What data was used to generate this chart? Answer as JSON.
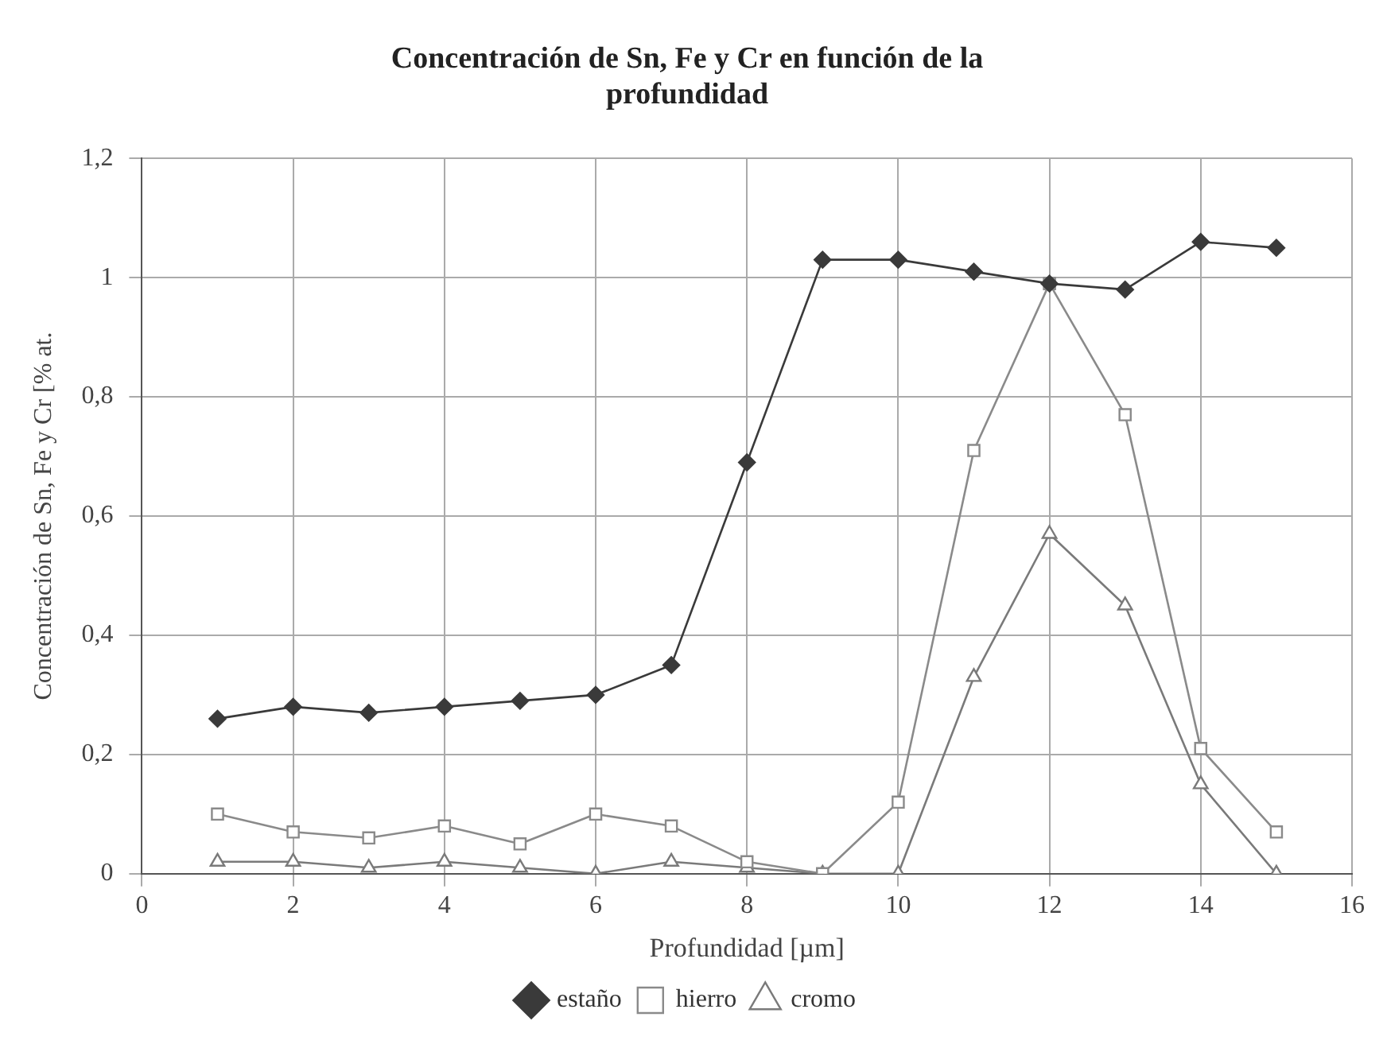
{
  "chart_data": {
    "type": "line",
    "title": "Concentración de Sn, Fe y Cr en función de la profundidad",
    "xlabel": "Profundidad [µm]",
    "ylabel": "Concentración de Sn, Fe y Cr [% at.",
    "x": [
      1,
      2,
      3,
      4,
      5,
      6,
      7,
      8,
      9,
      10,
      11,
      12,
      13,
      14,
      15
    ],
    "series": [
      {
        "name": "estaño",
        "color": "#3a3a3a",
        "marker": "diamond",
        "values": [
          0.26,
          0.28,
          0.27,
          0.28,
          0.29,
          0.3,
          0.35,
          0.69,
          1.03,
          1.03,
          1.01,
          0.99,
          0.98,
          1.06,
          1.05
        ]
      },
      {
        "name": "hierro",
        "color": "#8a8a8a",
        "marker": "square",
        "values": [
          0.1,
          0.07,
          0.06,
          0.08,
          0.05,
          0.1,
          0.08,
          0.02,
          0,
          0.12,
          0.71,
          0.99,
          0.77,
          0.21,
          0.07
        ]
      },
      {
        "name": "cromo",
        "color": "#7a7a7a",
        "marker": "triangle",
        "values": [
          0.02,
          0.02,
          0.01,
          0.02,
          0.01,
          0,
          0.02,
          0.01,
          0,
          0,
          0.33,
          0.57,
          0.45,
          0.15,
          0
        ]
      }
    ],
    "xlim": [
      0,
      16
    ],
    "xticks": [
      0,
      2,
      4,
      6,
      8,
      10,
      12,
      14,
      16
    ],
    "ylim": [
      0,
      1.2
    ],
    "yticks": [
      0,
      {
        "value": 0.2,
        "label": "0,2"
      },
      {
        "value": 0.4,
        "label": "0,4"
      },
      {
        "value": 0.6,
        "label": "0,6"
      },
      {
        "value": 0.8,
        "label": "0,8"
      },
      1,
      {
        "value": 1.2,
        "label": "1,2"
      }
    ],
    "grid": true,
    "legend": "bottom"
  }
}
